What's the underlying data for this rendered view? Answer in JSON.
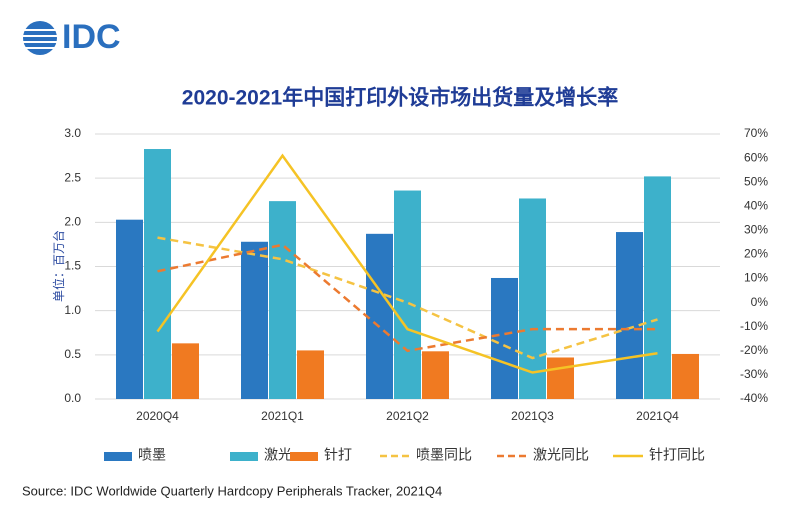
{
  "chart_data": {
    "type": "bar",
    "logo": "IDC",
    "title": "2020-2021年中国打印外设市场出货量及增长率",
    "y_label": "单位：百万台",
    "source": "Source:  IDC Worldwide Quarterly Hardcopy Peripherals Tracker, 2021Q4",
    "categories": [
      "2020Q4",
      "2021Q1",
      "2021Q2",
      "2021Q3",
      "2021Q4"
    ],
    "series": [
      {
        "name": "喷墨",
        "color": "#2a78c1",
        "values": [
          2.03,
          1.78,
          1.87,
          1.37,
          1.89
        ]
      },
      {
        "name": "激光",
        "color": "#3db1cb",
        "values": [
          2.83,
          2.24,
          2.36,
          2.27,
          2.52
        ]
      },
      {
        "name": "针打",
        "color": "#f07a21",
        "values": [
          0.63,
          0.55,
          0.54,
          0.47,
          0.51
        ]
      },
      {
        "name": "喷墨同比",
        "color": "#f5c343",
        "type": "line",
        "dashed": true,
        "axis": "y2",
        "values": [
          27,
          18,
          0,
          -23,
          -7
        ]
      },
      {
        "name": "激光同比",
        "color": "#ec7a30",
        "type": "line",
        "dashed": true,
        "axis": "y2",
        "values": [
          13,
          24,
          -20,
          -11,
          -11
        ]
      },
      {
        "name": "针打同比",
        "color": "#f5c325",
        "type": "line",
        "dashed": false,
        "axis": "y2",
        "values": [
          -12,
          61,
          -11,
          -29,
          -21
        ]
      }
    ],
    "ylim": [
      0,
      3
    ],
    "yticks": [
      {
        "value": 0,
        "label": "0.0"
      },
      0.5,
      {
        "value": 1,
        "label": "1.0"
      },
      1.5,
      {
        "value": 2,
        "label": "2.0"
      },
      2.5,
      {
        "value": 3,
        "label": "3.0"
      }
    ],
    "y2lim": [
      -40,
      70
    ],
    "y2ticks": [
      {
        "value": -40,
        "label": "-40%"
      },
      {
        "value": -30,
        "label": "-30%"
      },
      {
        "value": -20,
        "label": "-20%"
      },
      {
        "value": -10,
        "label": "-10%"
      },
      {
        "value": 0,
        "label": "0%"
      },
      {
        "value": 10,
        "label": "10%"
      },
      {
        "value": 20,
        "label": "20%"
      },
      {
        "value": 30,
        "label": "30%"
      },
      {
        "value": 40,
        "label": "40%"
      },
      {
        "value": 50,
        "label": "50%"
      },
      {
        "value": 60,
        "label": "60%"
      },
      {
        "value": 70,
        "label": "70%"
      }
    ],
    "grid": true
  }
}
